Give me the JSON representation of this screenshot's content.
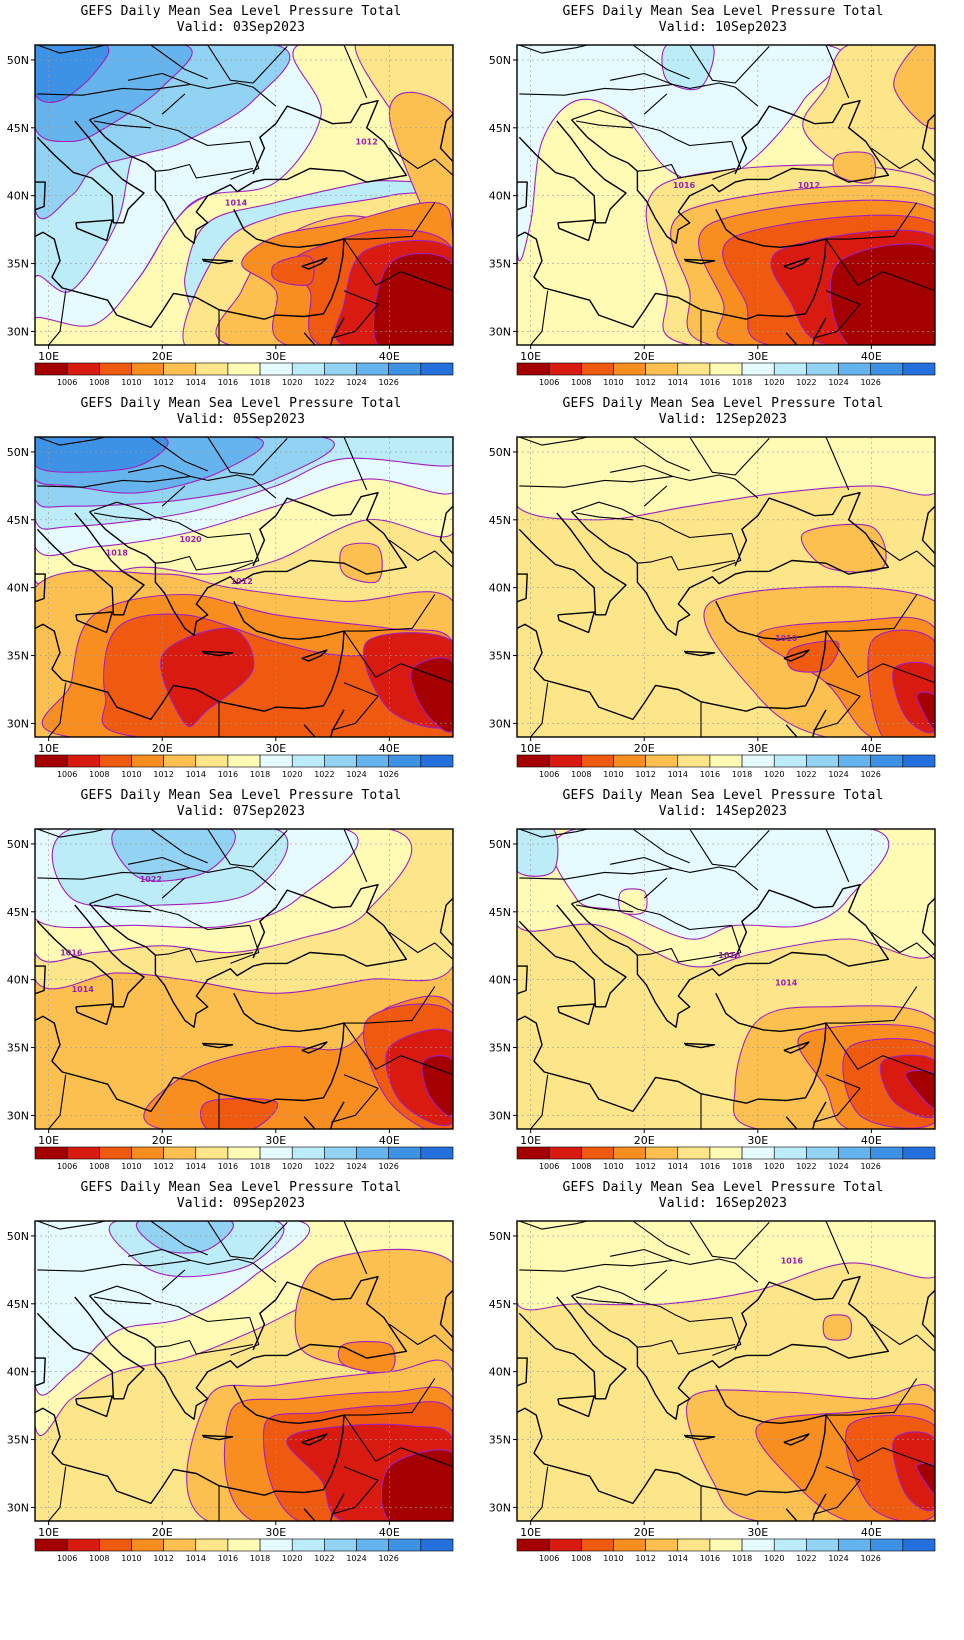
{
  "title": "GEFS Daily Mean Sea Level Pressure Total",
  "valid_prefix": "Valid:",
  "lon_ticks": [
    "10E",
    "20E",
    "30E",
    "40E"
  ],
  "lat_ticks": [
    "50N",
    "45N",
    "40N",
    "35N",
    "30N"
  ],
  "colorbar": {
    "labels": [
      "1006",
      "1008",
      "1010",
      "1012",
      "1014",
      "1016",
      "1018",
      "1020",
      "1022",
      "1024",
      "1026"
    ],
    "colors": [
      "#a50000",
      "#d81a10",
      "#f05a10",
      "#f98e20",
      "#fcc050",
      "#fde68a",
      "#fffbb5",
      "#e6fbff",
      "#bcecf8",
      "#92d2f3",
      "#66b4ee",
      "#3e92e6",
      "#2470dc"
    ]
  },
  "panels": [
    {
      "valid": "Valid: 03Sep2023",
      "contour_labels": [
        "1012",
        "1014"
      ]
    },
    {
      "valid": "Valid: 10Sep2023",
      "contour_labels": [
        "1016",
        "1012"
      ]
    },
    {
      "valid": "Valid: 05Sep2023",
      "contour_labels": [
        "1018",
        "1020",
        "1012"
      ]
    },
    {
      "valid": "Valid: 12Sep2023",
      "contour_labels": [
        "1010"
      ]
    },
    {
      "valid": "Valid: 07Sep2023",
      "contour_labels": [
        "1022",
        "1016",
        "1014"
      ]
    },
    {
      "valid": "Valid: 14Sep2023",
      "contour_labels": [
        "1016",
        "1014"
      ]
    },
    {
      "valid": "Valid: 09Sep2023",
      "contour_labels": []
    },
    {
      "valid": "Valid: 16Sep2023",
      "contour_labels": [
        "1016"
      ]
    }
  ]
}
